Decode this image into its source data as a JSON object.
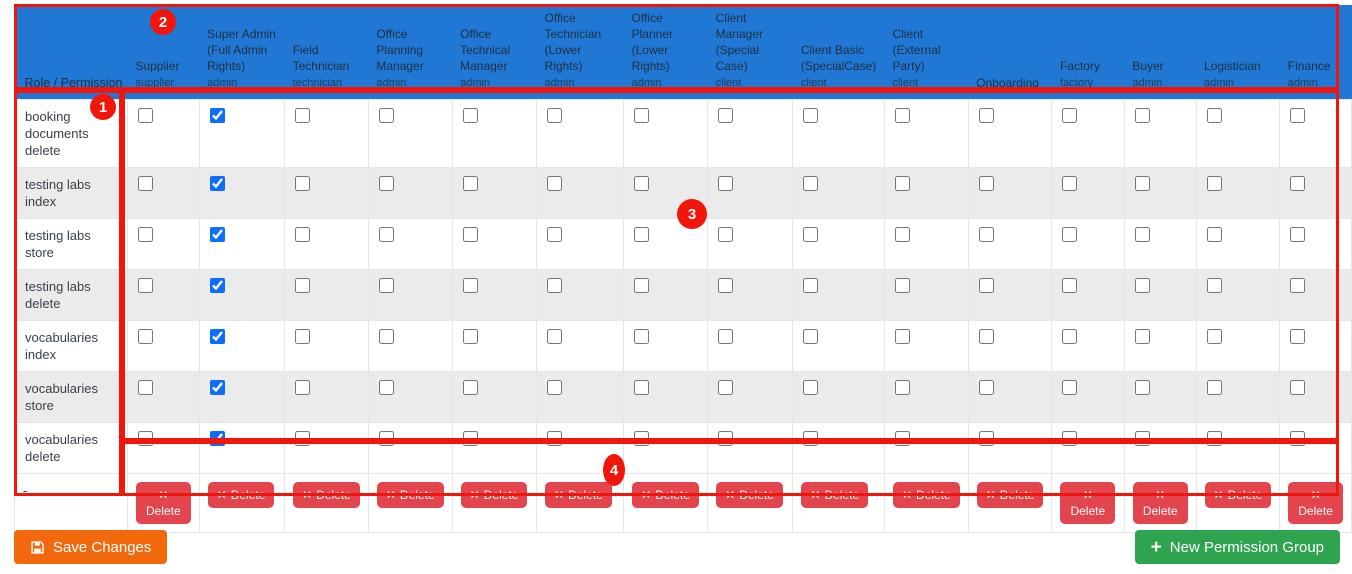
{
  "colors": {
    "header_blue": "#2178d4",
    "checkbox_checked_blue": "#0d6efd",
    "delete_red": "#e3454e",
    "save_orange": "#f2690d",
    "new_group_green": "#2fa44e",
    "annotation_red": "#f2150a",
    "stripe_gray": "#ebebeb"
  },
  "table": {
    "corner_header": "Role / Permission",
    "columns": [
      {
        "label": "Supplier",
        "sublabel": "supplier"
      },
      {
        "label": "Super Admin (Full Admin Rights)",
        "sublabel": "admin"
      },
      {
        "label": "Field Technician",
        "sublabel": "technician"
      },
      {
        "label": "Office Planning Manager",
        "sublabel": "admin"
      },
      {
        "label": "Office Technical Manager",
        "sublabel": "admin"
      },
      {
        "label": "Office Technician (Lower Rights)",
        "sublabel": "admin"
      },
      {
        "label": "Office Planner (Lower Rights)",
        "sublabel": "admin"
      },
      {
        "label": "Client Manager (Special Case)",
        "sublabel": "client"
      },
      {
        "label": "Client Basic (SpecialCase)",
        "sublabel": "client"
      },
      {
        "label": "Client (External Party)",
        "sublabel": "client"
      },
      {
        "label": "Onboarding",
        "sublabel": ""
      },
      {
        "label": "Factory",
        "sublabel": "factory"
      },
      {
        "label": "Buyer",
        "sublabel": "admin"
      },
      {
        "label": "Logistician",
        "sublabel": "admin"
      },
      {
        "label": "Finance",
        "sublabel": "admin"
      }
    ],
    "rows": [
      {
        "permission": "booking documents delete",
        "checks": [
          0,
          1,
          0,
          0,
          0,
          0,
          0,
          0,
          0,
          0,
          0,
          0,
          0,
          0,
          0
        ]
      },
      {
        "permission": "testing labs index",
        "checks": [
          0,
          1,
          0,
          0,
          0,
          0,
          0,
          0,
          0,
          0,
          0,
          0,
          0,
          0,
          0
        ]
      },
      {
        "permission": "testing labs store",
        "checks": [
          0,
          1,
          0,
          0,
          0,
          0,
          0,
          0,
          0,
          0,
          0,
          0,
          0,
          0,
          0
        ]
      },
      {
        "permission": "testing labs delete",
        "checks": [
          0,
          1,
          0,
          0,
          0,
          0,
          0,
          0,
          0,
          0,
          0,
          0,
          0,
          0,
          0
        ]
      },
      {
        "permission": "vocabularies index",
        "checks": [
          0,
          1,
          0,
          0,
          0,
          0,
          0,
          0,
          0,
          0,
          0,
          0,
          0,
          0,
          0
        ]
      },
      {
        "permission": "vocabularies store",
        "checks": [
          0,
          1,
          0,
          0,
          0,
          0,
          0,
          0,
          0,
          0,
          0,
          0,
          0,
          0,
          0
        ]
      },
      {
        "permission": "vocabularies delete",
        "checks": [
          0,
          1,
          0,
          0,
          0,
          0,
          0,
          0,
          0,
          0,
          0,
          0,
          0,
          0,
          0
        ]
      }
    ],
    "footer_row_label": "-",
    "delete_button": {
      "icon": "✕",
      "label": "Delete"
    }
  },
  "actions": {
    "save_label": "Save Changes",
    "new_group_plus": "+",
    "new_group_label": "New Permission Group"
  },
  "annotations": {
    "badges": [
      "1",
      "2",
      "3",
      "4"
    ]
  }
}
